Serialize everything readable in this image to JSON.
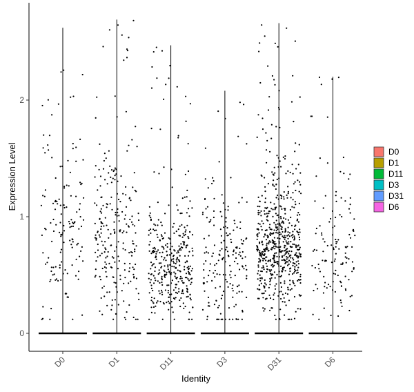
{
  "chart_data": {
    "type": "violin",
    "title": "",
    "xlabel": "Identity",
    "ylabel": "Expression Level",
    "ylim": [
      -0.15,
      2.8
    ],
    "yticks": [
      0,
      1,
      2
    ],
    "categories": [
      "D0",
      "D1",
      "D11",
      "D3",
      "D31",
      "D6"
    ],
    "colors": [
      "#F8766D",
      "#B79F00",
      "#00BA38",
      "#00BFC4",
      "#619CFF",
      "#F564E3"
    ],
    "violin_max": [
      2.62,
      2.69,
      2.47,
      2.08,
      2.66,
      2.2
    ],
    "nonzero_points": [
      {
        "count": 140,
        "median": 0.75,
        "spread": 0.55
      },
      {
        "count": 240,
        "median": 0.65,
        "spread": 0.5
      },
      {
        "count": 360,
        "median": 0.45,
        "spread": 0.3
      },
      {
        "count": 190,
        "median": 0.45,
        "spread": 0.4
      },
      {
        "count": 620,
        "median": 0.6,
        "spread": 0.35
      },
      {
        "count": 130,
        "median": 0.55,
        "spread": 0.45
      }
    ],
    "legend": {
      "position": "right",
      "entries": [
        "D0",
        "D1",
        "D11",
        "D3",
        "D31",
        "D6"
      ]
    },
    "grid": false,
    "point_color": "#000000"
  }
}
